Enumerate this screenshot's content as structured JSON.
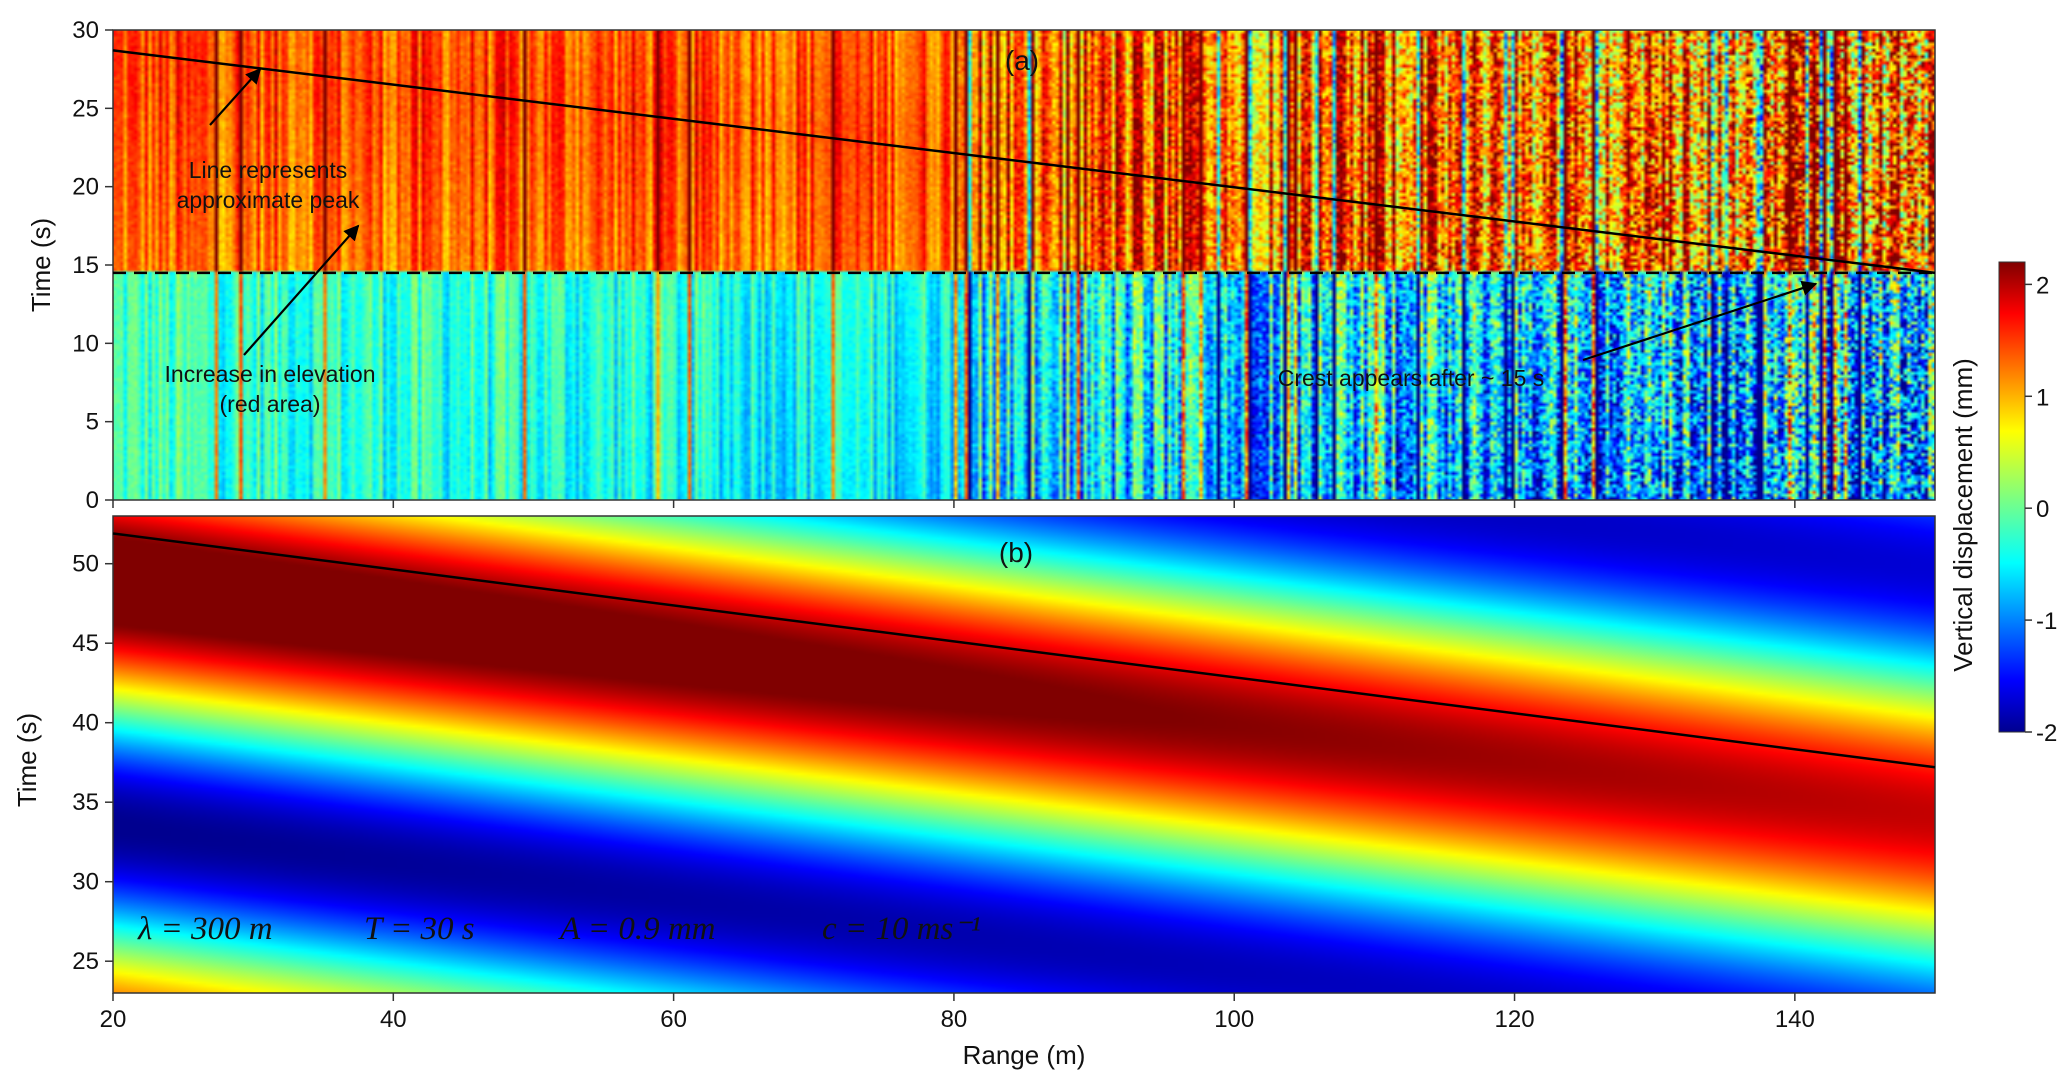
{
  "chart_data": [
    {
      "type": "heatmap",
      "panel_label": "(a)",
      "title": "",
      "xlabel": "",
      "ylabel": "Time (s)",
      "xlim": [
        20,
        150
      ],
      "ylim": [
        0,
        30
      ],
      "yticks": [
        "0",
        "5",
        "10",
        "15",
        "20",
        "25",
        "30"
      ],
      "colorscale": "jet",
      "zlim": [
        -2,
        2.2
      ],
      "field": "measured vertical displacement; elevated (red, ~1 to 2 mm) above ~14.5 s, near 0 to -1.5 mm below; noisy columns beyond ~80 m",
      "peak_line": {
        "x": [
          20,
          150
        ],
        "y": [
          28.7,
          14.5
        ],
        "style": "solid"
      },
      "reference_line": {
        "y": 14.5,
        "style": "dashed"
      },
      "annotations": [
        {
          "lines": [
            "Line represents",
            "approximate peak"
          ],
          "arrow_to": [
            30.5,
            27.5
          ]
        },
        {
          "lines": [
            "Increase in elevation",
            "(red area)"
          ],
          "arrow_to": [
            37.5,
            17.5
          ]
        },
        {
          "lines": [
            "Crest appears after ~ 15 s"
          ],
          "arrow_to": [
            141.5,
            13.8
          ]
        }
      ]
    },
    {
      "type": "heatmap",
      "panel_label": "(b)",
      "title": "",
      "xlabel": "Range (m)",
      "ylabel": "Time (s)",
      "xlim": [
        20,
        150
      ],
      "ylim": [
        23,
        53
      ],
      "xticks": [
        "20",
        "40",
        "60",
        "80",
        "100",
        "120",
        "140"
      ],
      "yticks": [
        "25",
        "30",
        "35",
        "40",
        "45",
        "50"
      ],
      "colorscale": "jet",
      "zlim": [
        -2,
        2.2
      ],
      "model": {
        "wavelength_m": 300,
        "period_s": 30,
        "amplitude_mm": 0.9,
        "celerity_ms": 10
      },
      "peak_line": {
        "x": [
          20,
          150
        ],
        "y": [
          51.9,
          37.2
        ],
        "style": "solid"
      },
      "parameters": [
        "λ = 300 m",
        "T = 30 s",
        "A = 0.9 mm",
        "c = 10 ms⁻¹"
      ]
    }
  ],
  "colorbar": {
    "label": "Vertical displacement (mm)",
    "range": [
      -2,
      2.2
    ],
    "ticks": [
      "2",
      "1",
      "0",
      "-1",
      "-2"
    ]
  }
}
